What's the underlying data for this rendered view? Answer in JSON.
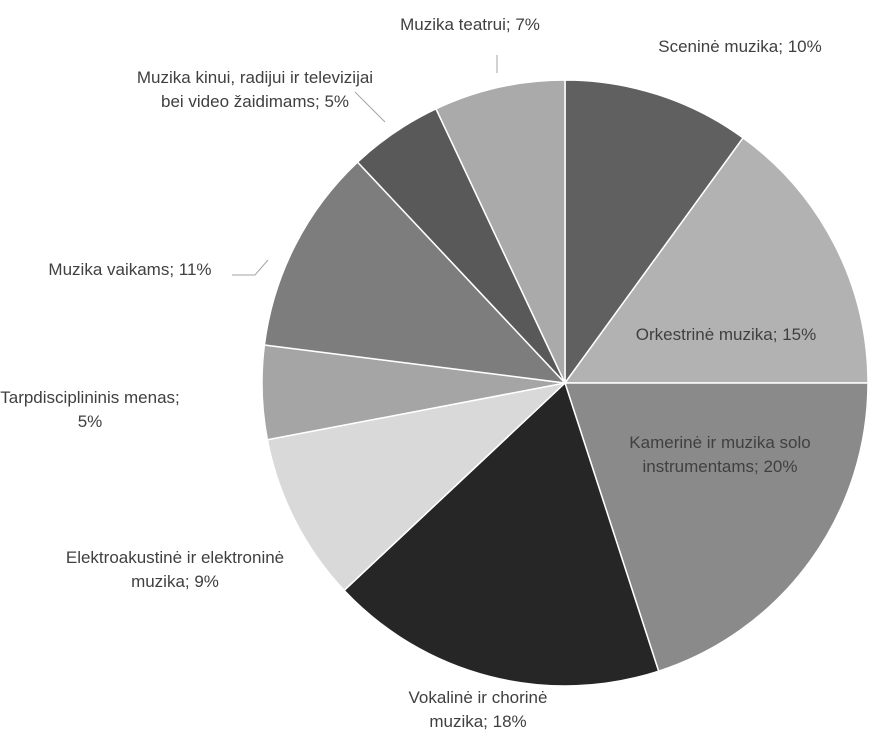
{
  "chart_data": {
    "type": "pie",
    "categories": [
      "Sceninė muzika; 10%",
      "Orkestrinė muzika; 15%",
      "Kamerinė ir muzika solo instrumentams; 20%",
      "Vokalinė ir chorinė muzika; 18%",
      "Elektroakustinė ir elektroninė muzika; 9%",
      "Tarpdisciplininis menas; 5%",
      "Muzika vaikams; 11%",
      "Muzika kinui, radijui ir televizijai bei video žaidimams; 5%",
      "Muzika teatrui; 7%"
    ],
    "values": [
      10,
      15,
      20,
      18,
      9,
      5,
      11,
      5,
      7
    ],
    "colors": [
      "#606060",
      "#b2b2b2",
      "#8a8a8a",
      "#262626",
      "#d9d9d9",
      "#a5a5a5",
      "#7d7d7d",
      "#595959",
      "#aaaaaa"
    ]
  }
}
